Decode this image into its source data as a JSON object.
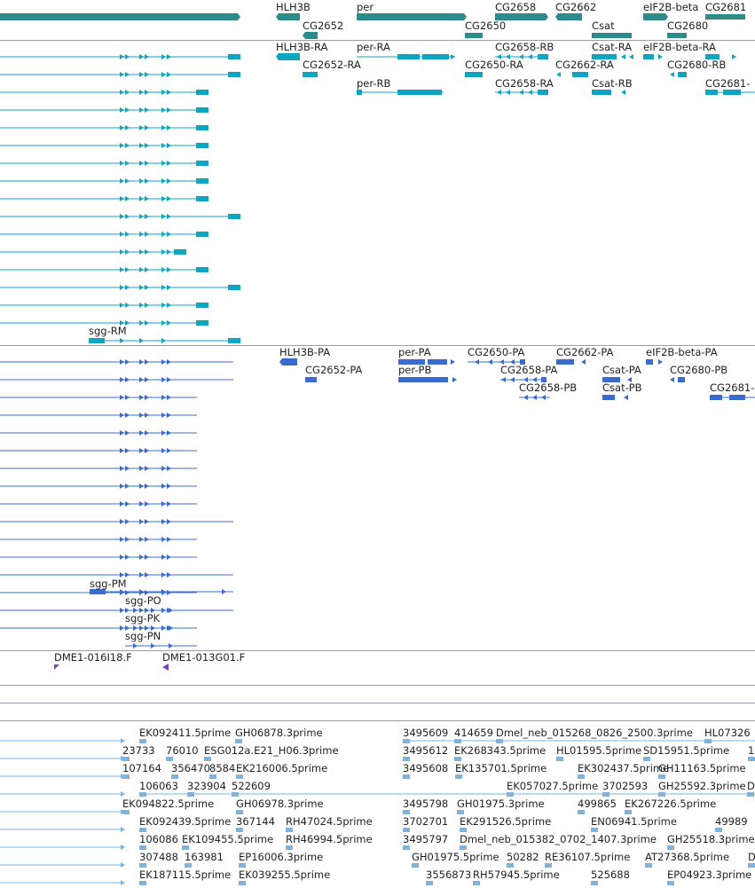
{
  "colors": {
    "gene": "#2c8c8c",
    "tx_a": "#0fa5c0",
    "tx_b": "#3a6cd0",
    "clone": "#7c3cc8",
    "est": "#7bb4de",
    "separator": "#9a9ab0"
  },
  "gene_track": {
    "labels": [
      "HLH3B",
      "per",
      "CG2658",
      "CG2662",
      "eIF2B-beta",
      "CG2681",
      "CG2652",
      "CG2650",
      "Csat",
      "CG2680"
    ]
  },
  "transcript_track_a": {
    "labels": [
      "HLH3B-RA",
      "per-RA",
      "CG2658-RB",
      "Csat-RA",
      "eIF2B-beta-RA",
      "CG2652-RA",
      "CG2650-RA",
      "CG2662-RA",
      "CG2680-RB",
      "per-RB",
      "CG2658-RA",
      "Csat-RB",
      "CG2681-",
      "sgg-RM"
    ]
  },
  "transcript_track_b": {
    "labels": [
      "HLH3B-PA",
      "per-PA",
      "CG2650-PA",
      "CG2662-PA",
      "eIF2B-beta-PA",
      "CG2652-PA",
      "per-PB",
      "CG2658-PA",
      "Csat-PA",
      "CG2680-PB",
      "CG2658-PB",
      "Csat-PB",
      "CG2681-",
      "sgg-PM",
      "sgg-PO",
      "sgg-PK",
      "sgg-PN"
    ]
  },
  "clone_track": {
    "labels": [
      "DME1-016I18.F",
      "DME1-013G01.F"
    ]
  },
  "est_track": {
    "rows": [
      [
        "EK092411.5prime",
        "GH06878.3prime",
        "3495609",
        "414659",
        "Dmel_neb_015268_0826_2500.3prime",
        "HL07326"
      ],
      [
        "23733",
        "76010",
        "ESG012a.E21_H06.3prime",
        "3495612",
        "EK268343.5prime",
        "HL01595.5prime",
        "SD15951.5prime",
        "1"
      ],
      [
        "107164",
        "356470",
        "8584",
        "EK216006.5prime",
        "3495608",
        "EK135701.5prime",
        "EK302437.5prime",
        "GH11163.5prime"
      ],
      [
        "106063",
        "323904",
        "522609",
        "EK057027.5prime",
        "3702593",
        "GH25592.3prime",
        "D"
      ],
      [
        "EK094822.5prime",
        "GH06978.3prime",
        "3495798",
        "GH01975.3prime",
        "499865",
        "EK267226.5prime"
      ],
      [
        "EK092439.5prime",
        "367144",
        "RH47024.5prime",
        "3702701",
        "EK291526.5prime",
        "EN06941.5prime",
        "49989"
      ],
      [
        "106086",
        "EK109455.5prime",
        "RH46994.5prime",
        "3495797",
        "Dmel_neb_015382_0702_1407.3prime",
        "GH25518.3prime"
      ],
      [
        "307488",
        "163981",
        "EP16006.3prime",
        "GH01975.5prime",
        "50282",
        "RE36107.5prime",
        "AT27368.5prime",
        "D"
      ],
      [
        "EK187115.5prime",
        "EK039255.5prime",
        "3556873",
        "RH57945.5prime",
        "525688",
        "EP04923.3prime"
      ]
    ]
  }
}
